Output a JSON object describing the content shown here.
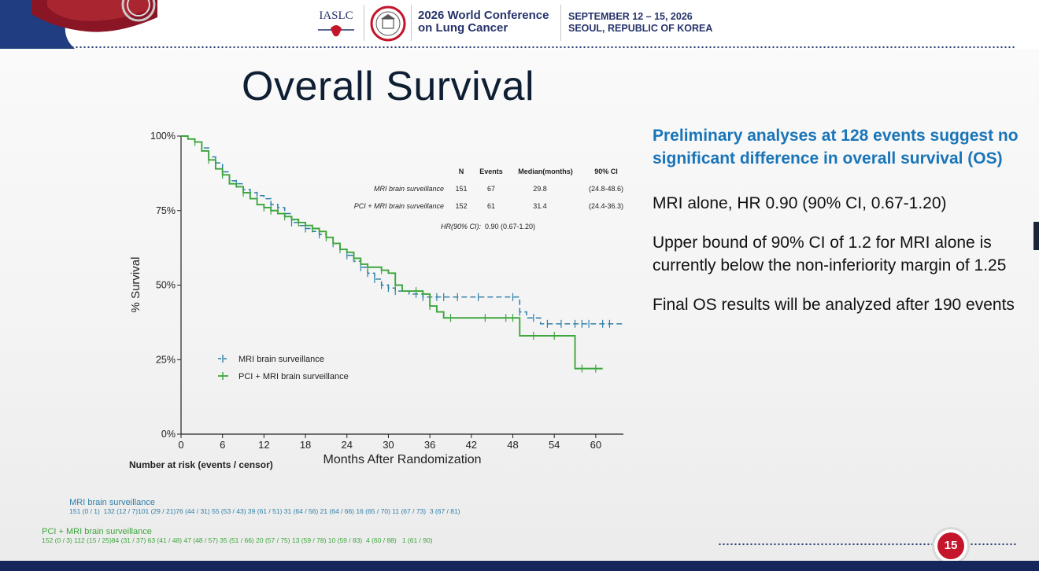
{
  "header": {
    "org": "IASLC",
    "conference": "2026 World Conference\non Lung Cancer",
    "dates": "SEPTEMBER 12 – 15, 2026\nSEOUL, REPUBLIC OF KOREA",
    "brand_color": "#26336b"
  },
  "slide": {
    "title": "Overall Survival",
    "page_number": "15"
  },
  "right_column": {
    "highlight": "Preliminary analyses at 128 events suggest no significant difference in overall survival (OS)",
    "highlight_color": "#1a75b8",
    "bullets": [
      "MRI alone, HR 0.90 (90% CI, 0.67-1.20)",
      "Upper bound of 90% CI of 1.2 for MRI alone is currently below the non-inferiority margin of 1.25",
      "Final OS results will be analyzed after 190 events"
    ]
  },
  "chart_data": {
    "type": "line",
    "title": "",
    "xlabel": "Months After Randomization",
    "ylabel": "% Survival",
    "xlim": [
      0,
      64
    ],
    "ylim": [
      0,
      100
    ],
    "x_ticks": [
      0,
      6,
      12,
      18,
      24,
      30,
      36,
      42,
      48,
      54,
      60
    ],
    "y_ticks": [
      "0%",
      "25%",
      "50%",
      "75%",
      "100%"
    ],
    "grid": false,
    "legend_position": "bottom-left",
    "series": [
      {
        "name": "MRI brain surveillance",
        "color": "#2e7fa8",
        "dash": "dashed",
        "step_points": [
          [
            0,
            100
          ],
          [
            1,
            99
          ],
          [
            2,
            98
          ],
          [
            3,
            96
          ],
          [
            4,
            93
          ],
          [
            5,
            91
          ],
          [
            6,
            88
          ],
          [
            7,
            85
          ],
          [
            8,
            84
          ],
          [
            9,
            82
          ],
          [
            10,
            81
          ],
          [
            11,
            80
          ],
          [
            12,
            79
          ],
          [
            13,
            77
          ],
          [
            14,
            76
          ],
          [
            15,
            74
          ],
          [
            16,
            71
          ],
          [
            17,
            70
          ],
          [
            18,
            69
          ],
          [
            19,
            68
          ],
          [
            20,
            67
          ],
          [
            21,
            66
          ],
          [
            22,
            64
          ],
          [
            23,
            62
          ],
          [
            24,
            60
          ],
          [
            25,
            58
          ],
          [
            26,
            56
          ],
          [
            27,
            54
          ],
          [
            28,
            52
          ],
          [
            29,
            50
          ],
          [
            30,
            49
          ],
          [
            31,
            48
          ],
          [
            33,
            47
          ],
          [
            35,
            46
          ],
          [
            38,
            46
          ],
          [
            42,
            46
          ],
          [
            46,
            46
          ],
          [
            48,
            46
          ],
          [
            49,
            41
          ],
          [
            50,
            39
          ],
          [
            52,
            37
          ],
          [
            54,
            37
          ],
          [
            57,
            37
          ],
          [
            60,
            37
          ],
          [
            64,
            37
          ]
        ],
        "censor_x": [
          3,
          5,
          8,
          10,
          11,
          13,
          14,
          16,
          18,
          20,
          22,
          24,
          26,
          27,
          28,
          29,
          30,
          31,
          34,
          35,
          37,
          38,
          40,
          43,
          48,
          49,
          51,
          53,
          55,
          57,
          58,
          59,
          61,
          62
        ]
      },
      {
        "name": "PCI + MRI brain surveillance",
        "color": "#3ca63c",
        "dash": "solid",
        "step_points": [
          [
            0,
            100
          ],
          [
            1,
            99
          ],
          [
            2,
            98
          ],
          [
            3,
            95
          ],
          [
            4,
            92
          ],
          [
            5,
            89
          ],
          [
            6,
            87
          ],
          [
            7,
            84
          ],
          [
            8,
            83
          ],
          [
            9,
            81
          ],
          [
            10,
            79
          ],
          [
            11,
            77
          ],
          [
            12,
            76
          ],
          [
            13,
            75
          ],
          [
            14,
            74
          ],
          [
            15,
            73
          ],
          [
            16,
            72
          ],
          [
            17,
            71
          ],
          [
            18,
            70
          ],
          [
            19,
            69
          ],
          [
            20,
            68
          ],
          [
            21,
            66
          ],
          [
            22,
            64
          ],
          [
            23,
            62
          ],
          [
            24,
            61
          ],
          [
            25,
            59
          ],
          [
            26,
            57
          ],
          [
            27,
            56
          ],
          [
            29,
            55
          ],
          [
            30,
            54
          ],
          [
            31,
            50
          ],
          [
            32,
            48
          ],
          [
            35,
            47
          ],
          [
            36,
            43
          ],
          [
            37,
            41
          ],
          [
            38,
            39
          ],
          [
            40,
            39
          ],
          [
            44,
            39
          ],
          [
            48,
            39
          ],
          [
            49,
            33
          ],
          [
            50,
            33
          ],
          [
            56,
            33
          ],
          [
            57,
            22
          ],
          [
            61,
            22
          ]
        ],
        "censor_x": [
          2,
          4,
          6,
          9,
          12,
          13,
          15,
          17,
          19,
          21,
          23,
          25,
          27,
          29,
          31,
          34,
          36,
          39,
          44,
          47,
          48,
          51,
          54,
          58,
          60
        ]
      }
    ],
    "summary_table": {
      "columns": [
        "N",
        "Events",
        "Median(months)",
        "90% CI"
      ],
      "rows": [
        {
          "label": "MRI brain surveillance",
          "n": "151",
          "events": "67",
          "median": "29.8",
          "ci": "(24.8-48.6)"
        },
        {
          "label": "PCI + MRI brain surveillance",
          "n": "152",
          "events": "61",
          "median": "31.4",
          "ci": "(24.4-36.3)"
        }
      ],
      "hr_label": "HR(90% CI):",
      "hr_value": "0.90 (0.67-1.20)"
    },
    "risk_table": {
      "title": "Number at risk (events / censor)",
      "rows": [
        {
          "label": "MRI brain surveillance",
          "values": "151 (0 / 1)  132 (12 / 7)101 (29 / 21)76 (44 / 31) 55 (53 / 43) 39 (61 / 51) 31 (64 / 56) 21 (64 / 66) 16 (65 / 70) 11 (67 / 73)  3 (67 / 81)"
        },
        {
          "label": "PCI + MRI brain surveillance",
          "values": "152 (0 / 3) 112 (15 / 25)84 (31 / 37) 63 (41 / 48) 47 (48 / 57) 35 (51 / 66) 20 (57 / 75) 13 (59 / 78) 10 (59 / 83)  4 (60 / 88)   1 (61 / 90)"
        }
      ]
    }
  }
}
